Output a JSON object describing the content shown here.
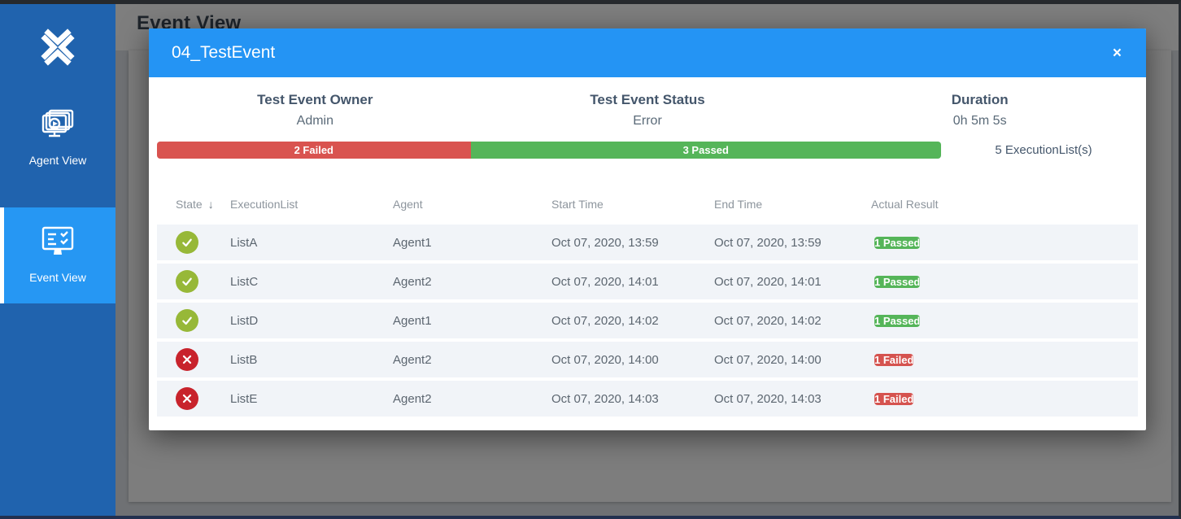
{
  "sidebar": {
    "logo_icon": "x-chevrons-logo",
    "items": [
      {
        "label": "Agent View",
        "icon": "agent-view-monitors-icon",
        "active": false
      },
      {
        "label": "Event View",
        "icon": "event-view-checklist-icon",
        "active": true
      }
    ]
  },
  "page": {
    "title": "Event View"
  },
  "modal": {
    "title": "04_TestEvent",
    "close_label": "×",
    "summary": [
      {
        "label": "Test Event Owner",
        "value": "Admin"
      },
      {
        "label": "Test Event Status",
        "value": "Error"
      },
      {
        "label": "Duration",
        "value": "0h 5m 5s"
      }
    ],
    "progress": {
      "failed_count": 2,
      "passed_count": 3,
      "failed_label": "2 Failed",
      "passed_label": "3 Passed",
      "total_label": "5 ExecutionList(s)"
    },
    "table": {
      "columns": {
        "state": "State",
        "execution_list": "ExecutionList",
        "agent": "Agent",
        "start_time": "Start Time",
        "end_time": "End Time",
        "actual_result": "Actual Result"
      },
      "sort_icon": "↓",
      "rows": [
        {
          "state": "passed",
          "execution_list": "ListA",
          "agent": "Agent1",
          "start_time": "Oct 07, 2020, 13:59",
          "end_time": "Oct 07, 2020, 13:59",
          "actual_result": "1 Passed",
          "result_status": "passed"
        },
        {
          "state": "passed",
          "execution_list": "ListC",
          "agent": "Agent2",
          "start_time": "Oct 07, 2020, 14:01",
          "end_time": "Oct 07, 2020, 14:01",
          "actual_result": "1 Passed",
          "result_status": "passed"
        },
        {
          "state": "passed",
          "execution_list": "ListD",
          "agent": "Agent1",
          "start_time": "Oct 07, 2020, 14:02",
          "end_time": "Oct 07, 2020, 14:02",
          "actual_result": "1 Passed",
          "result_status": "passed"
        },
        {
          "state": "failed",
          "execution_list": "ListB",
          "agent": "Agent2",
          "start_time": "Oct 07, 2020, 14:00",
          "end_time": "Oct 07, 2020, 14:00",
          "actual_result": "1 Failed",
          "result_status": "failed"
        },
        {
          "state": "failed",
          "execution_list": "ListE",
          "agent": "Agent2",
          "start_time": "Oct 07, 2020, 14:03",
          "end_time": "Oct 07, 2020, 14:03",
          "actual_result": "1 Failed",
          "result_status": "failed"
        }
      ]
    }
  },
  "colors": {
    "accent_blue": "#2494f4",
    "sidebar_blue": "#2063ae",
    "active_item_blue": "#2697f3",
    "passed_green": "#55b559",
    "failed_red": "#d9534f",
    "state_passed_green": "#97b838",
    "state_failed_red": "#c8232c"
  }
}
